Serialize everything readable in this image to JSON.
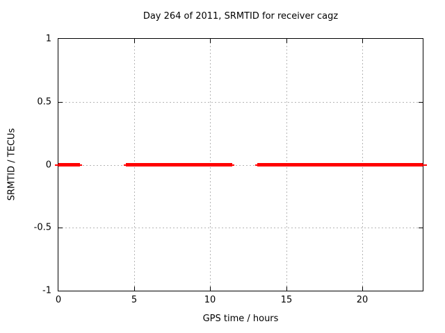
{
  "chart_data": {
    "type": "line",
    "title": "Day 264 of 2011, SRMTID for receiver cagz",
    "xlabel": "GPS time / hours",
    "ylabel": "SRMTID / TECUs",
    "xlim": [
      0,
      24
    ],
    "ylim": [
      -1,
      1
    ],
    "x_ticks": [
      0,
      5,
      10,
      15,
      20
    ],
    "y_tick_labels": [
      "1",
      "0.5",
      "0",
      "-0.5",
      "-1"
    ],
    "grid": "dotted",
    "legend": "none",
    "series": [
      {
        "name": "SRMTID",
        "color": "#ff0000",
        "y_value": 0,
        "segments_hours": [
          {
            "thick_start": 0.0,
            "thick_end": 1.42,
            "thin_start": -0.25,
            "thin_end": 1.56
          },
          {
            "thick_start": 4.45,
            "thick_end": 11.47,
            "thin_start": 4.31,
            "thin_end": 11.61
          },
          {
            "thick_start": 13.1,
            "thick_end": 24.0,
            "thin_start": 12.96,
            "thin_end": 24.28
          }
        ]
      }
    ],
    "colors": {
      "grid": "#b4b4b4",
      "border": "#000000",
      "background": "#ffffff",
      "text": "#000000"
    }
  }
}
